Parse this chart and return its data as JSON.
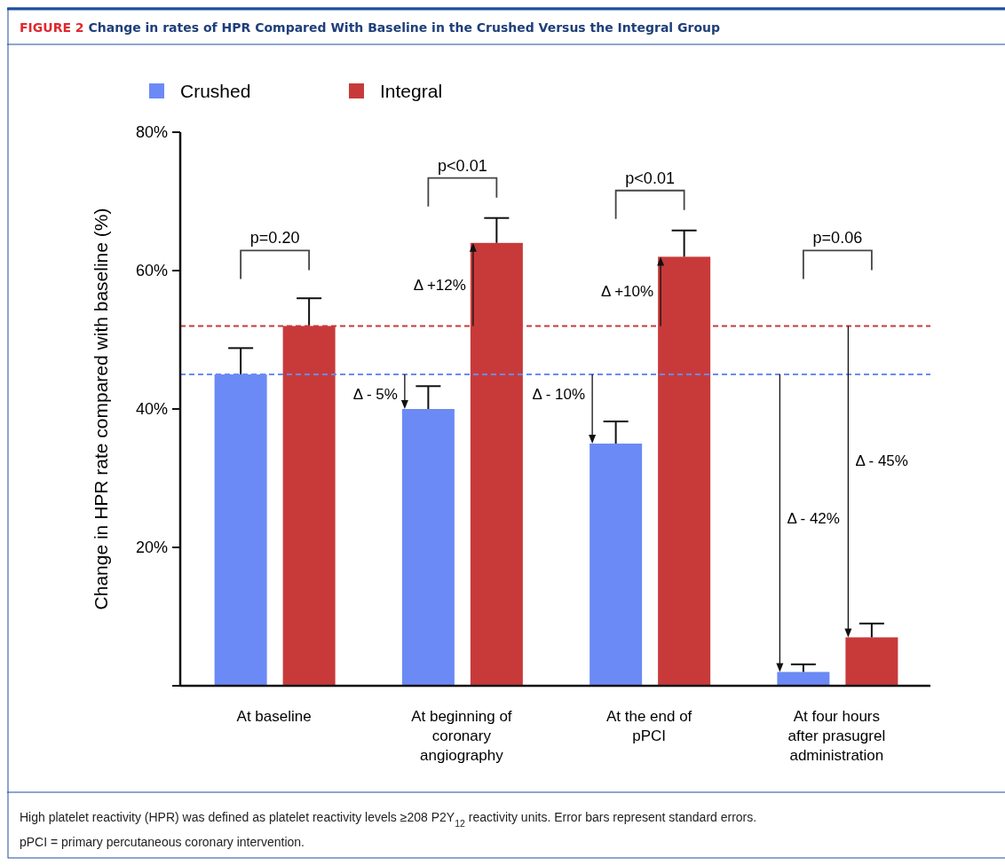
{
  "chart_data": {
    "type": "bar",
    "title": "FIGURE 2 Change in rates of HPR Compared With Baseline in the Crushed Versus the Integral Group",
    "ylabel": "Change in HPR rate compared with baseline (%)",
    "categories": [
      "At baseline",
      "At beginning of coronary angiography",
      "At the end of pPCI",
      "At four hours after prasugrel administration"
    ],
    "series": [
      {
        "name": "Crushed",
        "color": "#6b8af5",
        "values": [
          45,
          40,
          35,
          2
        ],
        "errors": [
          [
            45,
            48.8
          ],
          [
            40,
            43.3
          ],
          [
            35,
            38.2
          ],
          [
            2,
            3.1
          ]
        ]
      },
      {
        "name": "Integral",
        "color": "#c83a3a",
        "values": [
          52,
          64,
          62,
          7
        ],
        "errors": [
          [
            52,
            56
          ],
          [
            64,
            67.6
          ],
          [
            62,
            65.8
          ],
          [
            7,
            9
          ]
        ]
      }
    ],
    "ylim": [
      0,
      80
    ],
    "yticks": [
      {
        "value": 0,
        "label": null
      },
      {
        "value": 20,
        "label": "20%"
      },
      {
        "value": 40,
        "label": "40%"
      },
      {
        "value": 60,
        "label": "60%"
      },
      {
        "value": 80,
        "label": "80%"
      }
    ],
    "ref_lines": [
      {
        "axis": "y",
        "value": 45,
        "color": "#6b8af5",
        "line_style": "dashed"
      },
      {
        "axis": "y",
        "value": 52,
        "color": "#c83a3a",
        "line_style": "dashed"
      }
    ],
    "legend": "top left",
    "grid": false,
    "annotations": [
      "p=0.20",
      "p<0.01",
      "p<0.01",
      "p=0.06",
      "Δ - 5%",
      "Δ +12%",
      "Δ - 10%",
      "Δ +10%",
      "Δ - 42%",
      "Δ - 45%",
      "High platelet reactivity (HPR) was defined as platelet reactivity levels ≥208 P2Y$_{12}$ reactivity units. Error bars represent standard errors.",
      "pPCI = primary percutaneous coronary intervention."
    ]
  }
}
